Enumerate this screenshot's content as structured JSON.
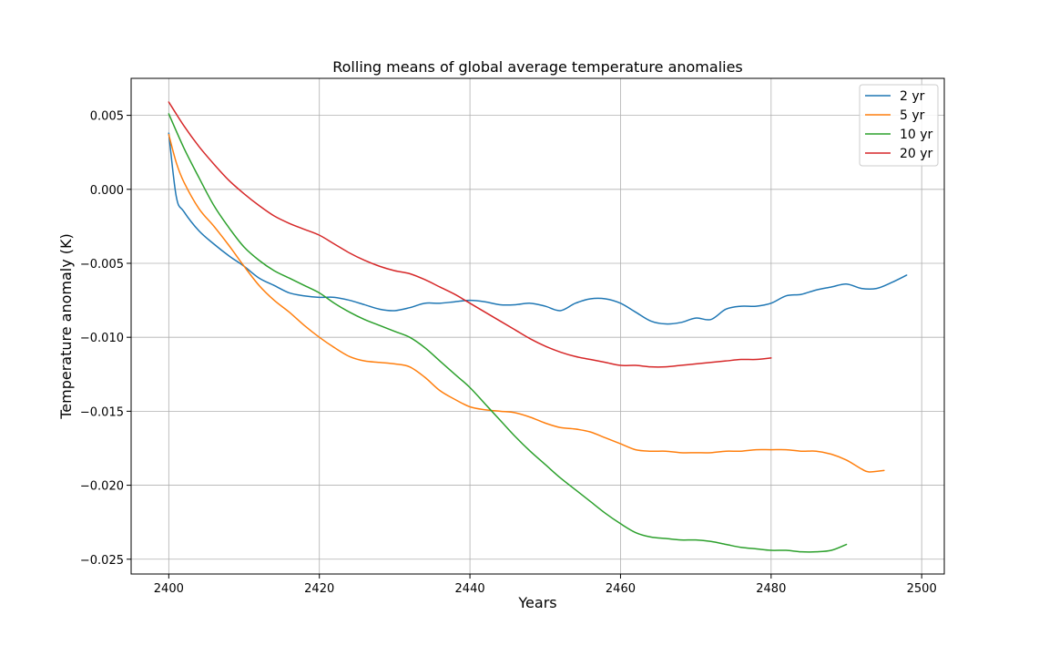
{
  "chart_data": {
    "type": "line",
    "title": "Rolling means of global average temperature anomalies",
    "xlabel": "Years",
    "ylabel": "Temperature anomaly (K)",
    "xlim": [
      2395,
      2503
    ],
    "ylim": [
      -0.026,
      0.0075
    ],
    "xticks": [
      2400,
      2420,
      2440,
      2460,
      2480,
      2500
    ],
    "yticks": [
      0.005,
      0.0,
      -0.005,
      -0.01,
      -0.015,
      -0.02,
      -0.025
    ],
    "ytick_labels": [
      "0.005",
      "0.000",
      "−0.005",
      "−0.010",
      "−0.015",
      "−0.020",
      "−0.025"
    ],
    "grid": true,
    "legend_position": "top-right",
    "series": [
      {
        "name": "2 yr",
        "color": "#1f77b4",
        "x": [
          2400,
          2401,
          2402,
          2404,
          2406,
          2408,
          2410,
          2412,
          2414,
          2416,
          2418,
          2420,
          2422,
          2424,
          2426,
          2428,
          2430,
          2432,
          2434,
          2436,
          2438,
          2440,
          2442,
          2444,
          2446,
          2448,
          2450,
          2452,
          2454,
          2456,
          2458,
          2460,
          2462,
          2464,
          2466,
          2468,
          2470,
          2472,
          2474,
          2476,
          2478,
          2480,
          2482,
          2484,
          2486,
          2488,
          2490,
          2492,
          2494,
          2496,
          2498
        ],
        "y": [
          0.0038,
          -0.0005,
          -0.0015,
          -0.0028,
          -0.0037,
          -0.0045,
          -0.0052,
          -0.006,
          -0.0065,
          -0.007,
          -0.0072,
          -0.0073,
          -0.0073,
          -0.0075,
          -0.0078,
          -0.0081,
          -0.0082,
          -0.008,
          -0.0077,
          -0.0077,
          -0.0076,
          -0.0075,
          -0.0076,
          -0.0078,
          -0.0078,
          -0.0077,
          -0.0079,
          -0.0082,
          -0.0077,
          -0.0074,
          -0.0074,
          -0.0077,
          -0.0083,
          -0.0089,
          -0.0091,
          -0.009,
          -0.0087,
          -0.0088,
          -0.0081,
          -0.0079,
          -0.0079,
          -0.0077,
          -0.0072,
          -0.0071,
          -0.0068,
          -0.0066,
          -0.0064,
          -0.0067,
          -0.0067,
          -0.0063,
          -0.0058
        ]
      },
      {
        "name": "5 yr",
        "color": "#ff7f0e",
        "x": [
          2400,
          2401,
          2402,
          2404,
          2406,
          2408,
          2410,
          2412,
          2414,
          2416,
          2418,
          2420,
          2422,
          2424,
          2426,
          2428,
          2430,
          2432,
          2434,
          2436,
          2438,
          2440,
          2442,
          2444,
          2446,
          2448,
          2450,
          2452,
          2454,
          2456,
          2458,
          2460,
          2462,
          2464,
          2466,
          2468,
          2470,
          2472,
          2474,
          2476,
          2478,
          2480,
          2482,
          2484,
          2486,
          2488,
          2490,
          2492,
          2493,
          2495
        ],
        "y": [
          0.0037,
          0.0018,
          0.0005,
          -0.0013,
          -0.0025,
          -0.0038,
          -0.0052,
          -0.0065,
          -0.0075,
          -0.0083,
          -0.0092,
          -0.01,
          -0.0107,
          -0.0113,
          -0.0116,
          -0.0117,
          -0.0118,
          -0.012,
          -0.0127,
          -0.0136,
          -0.0142,
          -0.0147,
          -0.0149,
          -0.015,
          -0.0151,
          -0.0154,
          -0.0158,
          -0.0161,
          -0.0162,
          -0.0164,
          -0.0168,
          -0.0172,
          -0.0176,
          -0.0177,
          -0.0177,
          -0.0178,
          -0.0178,
          -0.0178,
          -0.0177,
          -0.0177,
          -0.0176,
          -0.0176,
          -0.0176,
          -0.0177,
          -0.0177,
          -0.0179,
          -0.0183,
          -0.0189,
          -0.0191,
          -0.019
        ]
      },
      {
        "name": "10 yr",
        "color": "#2ca02c",
        "x": [
          2400,
          2402,
          2404,
          2406,
          2408,
          2410,
          2412,
          2414,
          2416,
          2418,
          2420,
          2422,
          2424,
          2426,
          2428,
          2430,
          2432,
          2434,
          2436,
          2438,
          2440,
          2442,
          2444,
          2446,
          2448,
          2450,
          2452,
          2454,
          2456,
          2458,
          2460,
          2462,
          2464,
          2466,
          2468,
          2470,
          2472,
          2474,
          2476,
          2478,
          2480,
          2482,
          2484,
          2486,
          2488,
          2490
        ],
        "y": [
          0.0051,
          0.0028,
          0.0008,
          -0.0011,
          -0.0026,
          -0.0039,
          -0.0048,
          -0.0055,
          -0.006,
          -0.0065,
          -0.007,
          -0.0077,
          -0.0083,
          -0.0088,
          -0.0092,
          -0.0096,
          -0.01,
          -0.0107,
          -0.0116,
          -0.0125,
          -0.0134,
          -0.0145,
          -0.0156,
          -0.0167,
          -0.0177,
          -0.0186,
          -0.0195,
          -0.0203,
          -0.0211,
          -0.0219,
          -0.0226,
          -0.0232,
          -0.0235,
          -0.0236,
          -0.0237,
          -0.0237,
          -0.0238,
          -0.024,
          -0.0242,
          -0.0243,
          -0.0244,
          -0.0244,
          -0.0245,
          -0.0245,
          -0.0244,
          -0.024
        ]
      },
      {
        "name": "20 yr",
        "color": "#d62728",
        "x": [
          2400,
          2402,
          2404,
          2406,
          2408,
          2410,
          2412,
          2414,
          2416,
          2418,
          2420,
          2422,
          2424,
          2426,
          2428,
          2430,
          2432,
          2434,
          2436,
          2438,
          2440,
          2442,
          2444,
          2446,
          2448,
          2450,
          2452,
          2454,
          2456,
          2458,
          2460,
          2462,
          2464,
          2466,
          2468,
          2470,
          2472,
          2474,
          2476,
          2478,
          2480
        ],
        "y": [
          0.0059,
          0.0043,
          0.0029,
          0.0017,
          0.0006,
          -0.0003,
          -0.0011,
          -0.0018,
          -0.0023,
          -0.0027,
          -0.0031,
          -0.0037,
          -0.0043,
          -0.0048,
          -0.0052,
          -0.0055,
          -0.0057,
          -0.0061,
          -0.0066,
          -0.0071,
          -0.0077,
          -0.0083,
          -0.0089,
          -0.0095,
          -0.0101,
          -0.0106,
          -0.011,
          -0.0113,
          -0.0115,
          -0.0117,
          -0.0119,
          -0.0119,
          -0.012,
          -0.012,
          -0.0119,
          -0.0118,
          -0.0117,
          -0.0116,
          -0.0115,
          -0.0115,
          -0.0114
        ]
      }
    ]
  }
}
